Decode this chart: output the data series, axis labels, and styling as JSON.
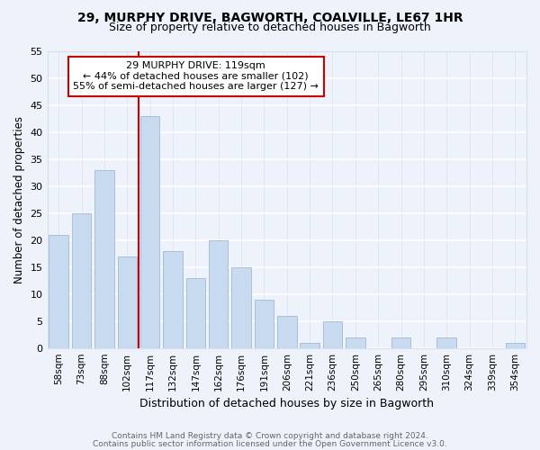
{
  "title1": "29, MURPHY DRIVE, BAGWORTH, COALVILLE, LE67 1HR",
  "title2": "Size of property relative to detached houses in Bagworth",
  "xlabel": "Distribution of detached houses by size in Bagworth",
  "ylabel": "Number of detached properties",
  "bar_labels": [
    "58sqm",
    "73sqm",
    "88sqm",
    "102sqm",
    "117sqm",
    "132sqm",
    "147sqm",
    "162sqm",
    "176sqm",
    "191sqm",
    "206sqm",
    "221sqm",
    "236sqm",
    "250sqm",
    "265sqm",
    "280sqm",
    "295sqm",
    "310sqm",
    "324sqm",
    "339sqm",
    "354sqm"
  ],
  "bar_values": [
    21,
    25,
    33,
    17,
    43,
    18,
    13,
    20,
    15,
    9,
    6,
    1,
    5,
    2,
    0,
    2,
    0,
    2,
    0,
    0,
    1
  ],
  "bar_color": "#c8daf0",
  "bar_edge_color": "#a0b8d8",
  "property_line_x": 3.5,
  "annotation_line1": "29 MURPHY DRIVE: 119sqm",
  "annotation_line2": "← 44% of detached houses are smaller (102)",
  "annotation_line3": "55% of semi-detached houses are larger (127) →",
  "annotation_box_color": "white",
  "annotation_box_edge": "#cc0000",
  "property_line_color": "#cc0000",
  "ylim": [
    0,
    55
  ],
  "yticks": [
    0,
    5,
    10,
    15,
    20,
    25,
    30,
    35,
    40,
    45,
    50,
    55
  ],
  "footer1": "Contains HM Land Registry data © Crown copyright and database right 2024.",
  "footer2": "Contains public sector information licensed under the Open Government Licence v3.0.",
  "bg_color": "#eef2fa",
  "grid_color": "#d8e0ec"
}
